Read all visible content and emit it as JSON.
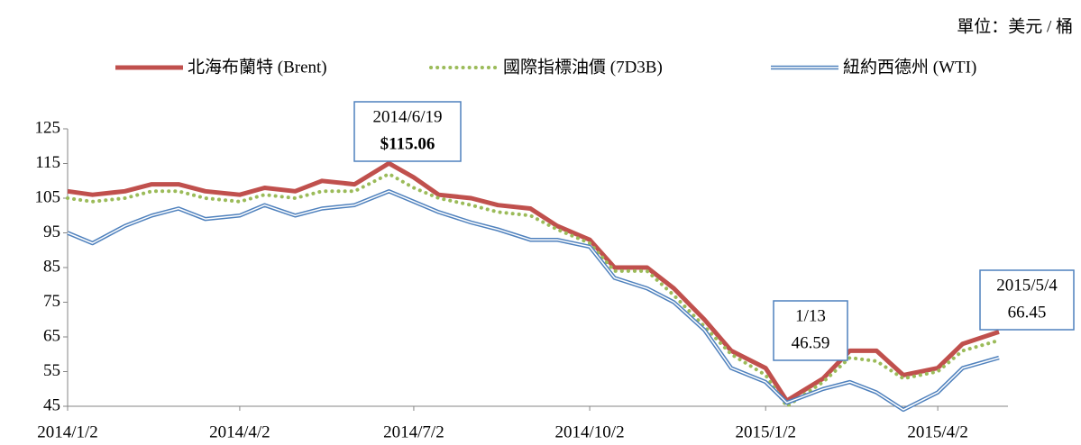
{
  "chart_data": {
    "type": "line",
    "unit_label": "單位：美元 / 桶",
    "x": [
      "2014/1/2",
      "2014/1/15",
      "2014/2/1",
      "2014/2/15",
      "2014/3/1",
      "2014/3/15",
      "2014/4/2",
      "2014/4/15",
      "2014/5/1",
      "2014/5/15",
      "2014/6/1",
      "2014/6/19",
      "2014/7/2",
      "2014/7/15",
      "2014/8/1",
      "2014/8/15",
      "2014/9/1",
      "2014/9/15",
      "2014/10/2",
      "2014/10/15",
      "2014/11/1",
      "2014/11/15",
      "2014/12/1",
      "2014/12/15",
      "2015/1/2",
      "2015/1/13",
      "2015/2/1",
      "2015/2/15",
      "2015/3/1",
      "2015/3/15",
      "2015/4/2",
      "2015/4/15",
      "2015/5/4"
    ],
    "series": [
      {
        "name": "北海布蘭特 (Brent)",
        "color": "#c0504d",
        "style": "solid",
        "values": [
          107,
          106,
          107,
          109,
          109,
          107,
          106,
          108,
          107,
          110,
          109,
          115.06,
          111,
          106,
          105,
          103,
          102,
          97,
          93,
          85,
          85,
          79,
          70,
          61,
          56,
          46.59,
          53,
          61,
          61,
          54,
          56,
          63,
          66.45
        ]
      },
      {
        "name": "國際指標油價 (7D3B)",
        "color": "#9bbb59",
        "style": "dotted",
        "values": [
          105,
          104,
          105,
          107,
          107,
          105,
          104,
          106,
          105,
          107,
          107,
          112,
          108,
          105,
          103,
          101,
          100,
          96,
          92,
          84,
          84,
          77,
          68,
          60,
          54,
          45,
          52,
          59,
          58,
          53,
          55,
          61,
          64
        ]
      },
      {
        "name": "紐約西德州 (WTI)",
        "color": "#4f81bd",
        "style": "double",
        "values": [
          95,
          92,
          97,
          100,
          102,
          99,
          100,
          103,
          100,
          102,
          103,
          107,
          104,
          101,
          98,
          96,
          93,
          93,
          91,
          82,
          79,
          75,
          67,
          56,
          52,
          46,
          50,
          52,
          49,
          44,
          49,
          56,
          59
        ]
      }
    ],
    "xticks": [
      "2014/1/2",
      "2014/4/2",
      "2014/7/2",
      "2014/10/2",
      "2015/1/2",
      "2015/4/2"
    ],
    "xlim": [
      "2014/1/2",
      "2015/5/4"
    ],
    "ylim": [
      45,
      125
    ],
    "yticks": [
      45,
      55,
      65,
      75,
      85,
      95,
      105,
      115,
      125
    ],
    "grid": false,
    "annotations": [
      {
        "lines": [
          "2014/6/19",
          "$115.06"
        ]
      },
      {
        "lines": [
          "1/13",
          "46.59"
        ]
      },
      {
        "lines": [
          "2015/5/4",
          "66.45"
        ]
      }
    ]
  }
}
